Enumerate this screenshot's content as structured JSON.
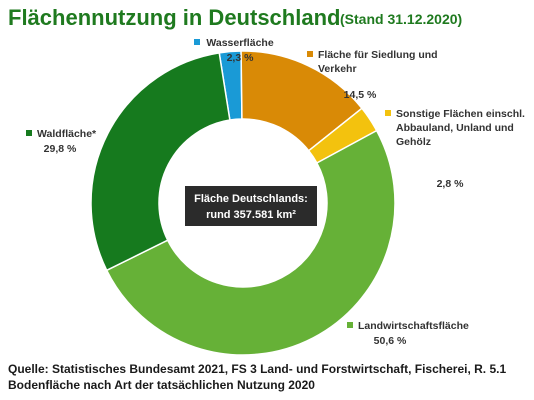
{
  "chart_data": {
    "type": "pie",
    "title": "Flächennutzung in Deutschland",
    "subtitle": "(Stand 31.12.2020)",
    "center_label": [
      "Fläche Deutschlands:",
      "rund 357.581 km²"
    ],
    "footer": [
      "Quelle: Statistisches Bundesamt 2021, FS 3 Land- und Forstwirtschaft, Fischerei, R. 5.1",
      "Bodenfläche nach Art der tatsächlichen Nutzung 2020"
    ],
    "legend_placement": "labels around ring",
    "slices": [
      {
        "label": [
          "Wasserfläche"
        ],
        "value_text": "2,3 %",
        "value": 2.3,
        "color": "#1a9ad6"
      },
      {
        "label": [
          "Fläche für Siedlung und",
          "Verkehr"
        ],
        "value_text": "14,5 %",
        "value": 14.5,
        "color": "#d98a06"
      },
      {
        "label": [
          "Sonstige Flächen einschl.",
          "Abbauland, Unland und",
          "Gehölz"
        ],
        "value_text": "2,8 %",
        "value": 2.8,
        "color": "#f3c20e"
      },
      {
        "label": [
          "Landwirtschaftsfläche"
        ],
        "value_text": "50,6 %",
        "value": 50.6,
        "color": "#66b137"
      },
      {
        "label": [
          "Waldfläche*"
        ],
        "value_text": "29,8 %",
        "value": 29.8,
        "color": "#167a1e"
      }
    ]
  }
}
